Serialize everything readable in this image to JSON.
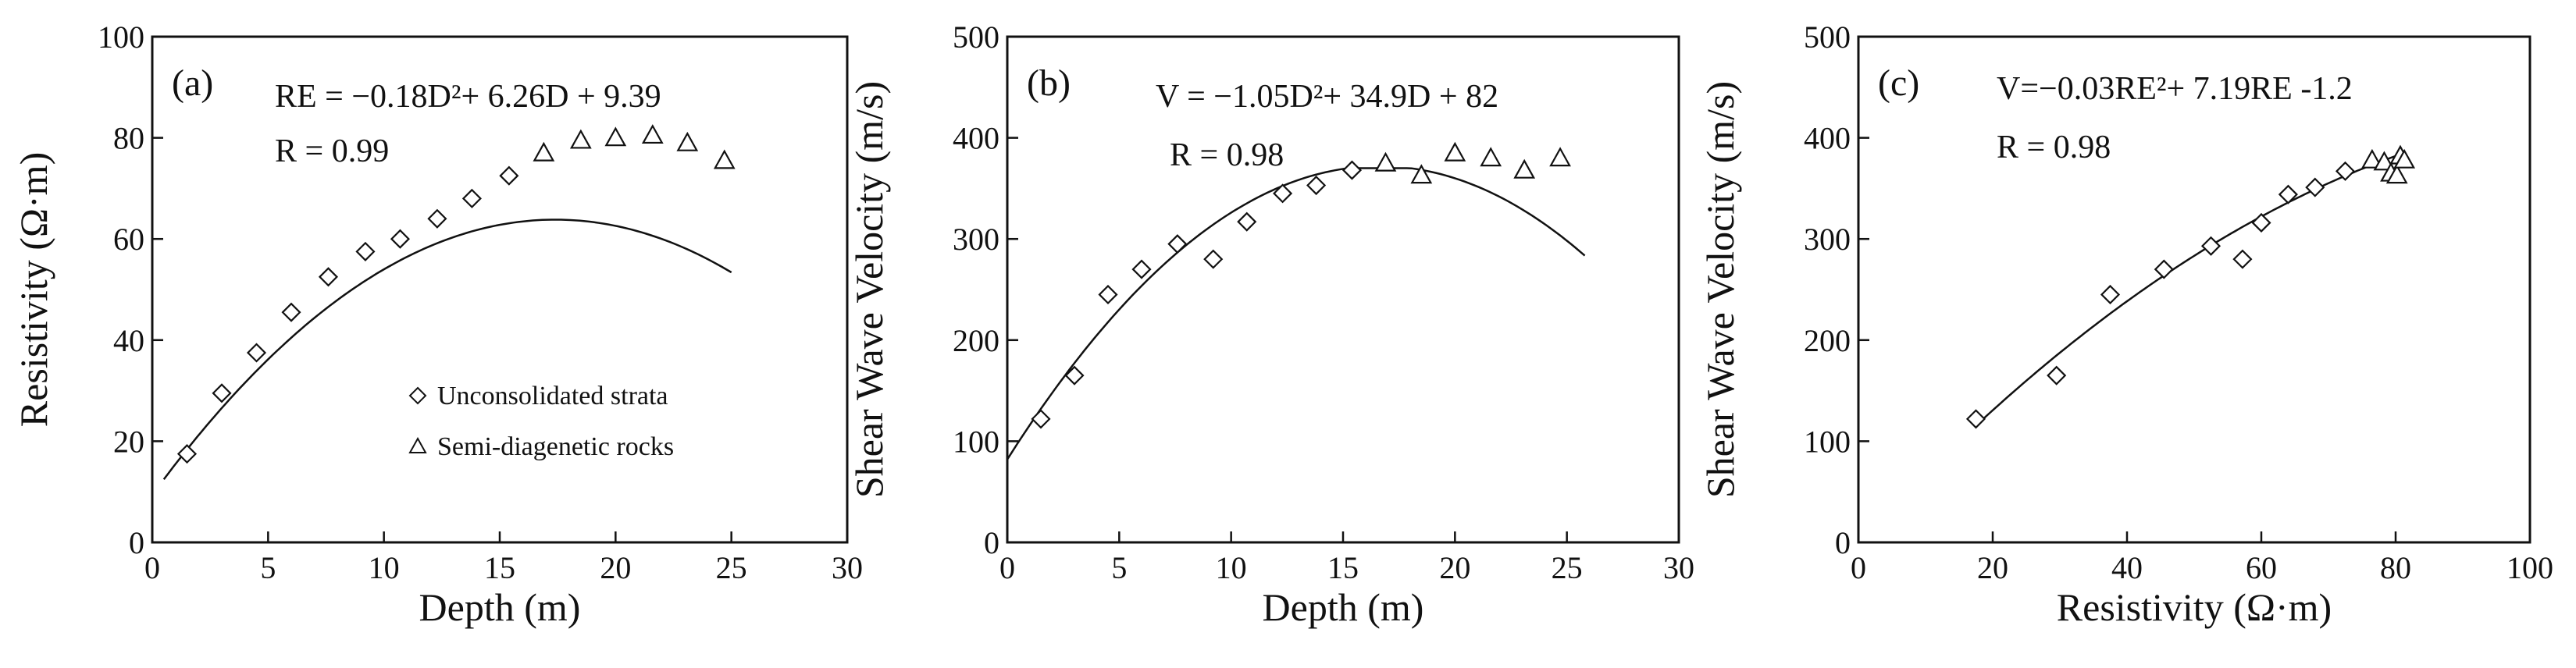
{
  "chart_data": [
    {
      "type": "scatter",
      "panel": "(a)",
      "xlabel": "Depth (m)",
      "ylabel": "Resistivity (Ω·m)",
      "xlim": [
        0,
        30
      ],
      "ylim": [
        0,
        100
      ],
      "xticks": [
        0,
        5,
        10,
        15,
        20,
        25,
        30
      ],
      "yticks": [
        0,
        20,
        40,
        60,
        80,
        100
      ],
      "annotations": [
        "RE = −0.18D²+ 6.26D + 9.39",
        "R = 0.99"
      ],
      "legend_position": "lower-right",
      "series": [
        {
          "name": "Unconsolidated strata",
          "marker": "diamond",
          "points": [
            [
              1.5,
              17.5
            ],
            [
              3.0,
              29.5
            ],
            [
              4.5,
              37.5
            ],
            [
              6.0,
              45.5
            ],
            [
              7.6,
              52.5
            ],
            [
              9.2,
              57.5
            ],
            [
              10.7,
              60
            ],
            [
              12.3,
              64
            ],
            [
              13.8,
              68
            ],
            [
              15.4,
              72.5
            ]
          ]
        },
        {
          "name": "Semi-diagenetic rocks",
          "marker": "triangle",
          "points": [
            [
              16.9,
              77
            ],
            [
              18.5,
              79.5
            ],
            [
              20.0,
              80
            ],
            [
              21.6,
              80.5
            ],
            [
              23.1,
              79
            ],
            [
              24.7,
              75.5
            ]
          ]
        }
      ],
      "fit": {
        "a": -0.18,
        "b": 6.26,
        "c": 9.39,
        "x_range": [
          0.5,
          25
        ]
      }
    },
    {
      "type": "scatter",
      "panel": "(b)",
      "xlabel": "Depth (m)",
      "ylabel": "Shear Wave Velocity (m/s)",
      "xlim": [
        0,
        30
      ],
      "ylim": [
        0,
        500
      ],
      "xticks": [
        0,
        5,
        10,
        15,
        20,
        25,
        30
      ],
      "yticks": [
        0,
        100,
        200,
        300,
        400,
        500
      ],
      "annotations": [
        "V = −1.05D²+ 34.9D + 82",
        "R = 0.98"
      ],
      "series": [
        {
          "name": "Unconsolidated strata",
          "marker": "diamond",
          "points": [
            [
              1.5,
              122
            ],
            [
              3.0,
              165
            ],
            [
              4.5,
              245
            ],
            [
              6.0,
              270
            ],
            [
              7.6,
              295
            ],
            [
              9.2,
              280
            ],
            [
              10.7,
              317
            ],
            [
              12.3,
              345
            ],
            [
              13.8,
              353
            ],
            [
              15.4,
              368
            ]
          ]
        },
        {
          "name": "Semi-diagenetic rocks",
          "marker": "triangle",
          "points": [
            [
              16.9,
              375
            ],
            [
              18.5,
              363
            ],
            [
              20.0,
              385
            ],
            [
              21.6,
              380
            ],
            [
              23.1,
              368
            ],
            [
              24.7,
              380
            ]
          ]
        }
      ],
      "fit": {
        "a": -1.05,
        "b": 34.9,
        "c": 82,
        "x_range": [
          0,
          25.8
        ],
        "plateau": 370
      }
    },
    {
      "type": "scatter",
      "panel": "(c)",
      "xlabel": "Resistivity (Ω·m)",
      "ylabel": "Shear Wave Velocity (m/s)",
      "xlim": [
        0,
        100
      ],
      "ylim": [
        0,
        500
      ],
      "xticks": [
        0,
        20,
        40,
        60,
        80,
        100
      ],
      "yticks": [
        0,
        100,
        200,
        300,
        400,
        500
      ],
      "annotations": [
        "V=−0.03RE²+ 7.19RE -1.2",
        "R = 0.98"
      ],
      "series": [
        {
          "name": "Unconsolidated strata",
          "marker": "diamond",
          "points": [
            [
              17.5,
              122
            ],
            [
              29.5,
              165
            ],
            [
              37.5,
              245
            ],
            [
              45.5,
              270
            ],
            [
              52.5,
              293
            ],
            [
              57.2,
              280
            ],
            [
              60,
              316
            ],
            [
              64,
              344
            ],
            [
              68,
              351
            ],
            [
              72.5,
              367
            ]
          ]
        },
        {
          "name": "Semi-diagenetic rocks",
          "marker": "triangle",
          "points": [
            [
              76.5,
              378
            ],
            [
              78.3,
              376
            ],
            [
              79.3,
              365
            ],
            [
              80.2,
              363
            ],
            [
              80.7,
              382
            ],
            [
              81.3,
              378
            ]
          ]
        }
      ],
      "fit": {
        "a": -0.03,
        "b": 7.19,
        "c": -1.2,
        "x_range": [
          17.5,
          80
        ]
      }
    }
  ]
}
